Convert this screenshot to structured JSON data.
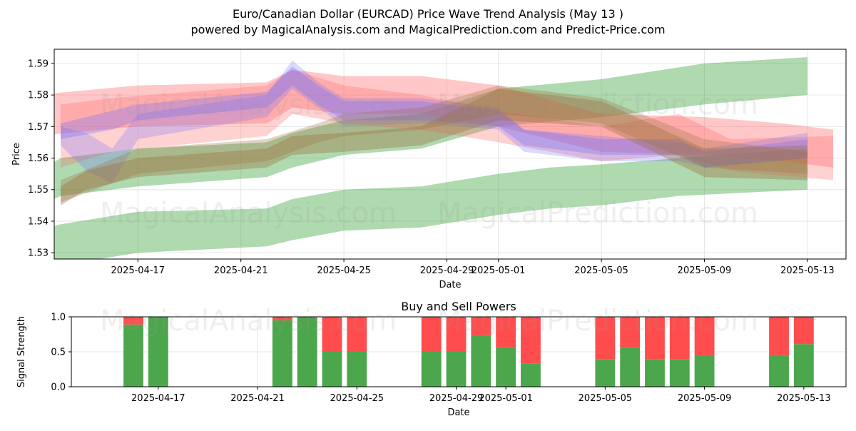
{
  "title": "Euro/Canadian Dollar (EURCAD) Price Wave Trend Analysis (May 13 )",
  "subtitle": "powered by MagicalAnalysis.com and MagicalPrediction.com and Predict-Price.com",
  "watermarks": [
    "MagicalAnalysis.com",
    "MagicalPrediction.com"
  ],
  "chart_data": [
    {
      "type": "area",
      "title": "",
      "xlabel": "Date",
      "ylabel": "Price",
      "x_tick_labels": [
        "2025-04-17",
        "2025-04-21",
        "2025-04-25",
        "2025-04-29",
        "2025-05-01",
        "2025-05-05",
        "2025-05-09",
        "2025-05-13"
      ],
      "xlim": [
        "2025-04-13",
        "2025-05-14"
      ],
      "ylim": [
        1.528,
        1.5945
      ],
      "yticks": [
        1.53,
        1.54,
        1.55,
        1.56,
        1.57,
        1.58,
        1.59
      ],
      "grid": true,
      "colors": {
        "blue": "#6b6bff",
        "red": "#ff6b6b",
        "green": "#2e9a2e",
        "brown": "#9a7040"
      },
      "series": [
        {
          "color": "green",
          "opacity": 0.38,
          "x": [
            "2025-04-13",
            "2025-04-14",
            "2025-04-17",
            "2025-04-22",
            "2025-04-23",
            "2025-04-25",
            "2025-04-28",
            "2025-05-01",
            "2025-05-03",
            "2025-05-05",
            "2025-05-08",
            "2025-05-13"
          ],
          "upper": [
            1.537,
            1.539,
            1.543,
            1.544,
            1.547,
            1.55,
            1.551,
            1.555,
            1.557,
            1.558,
            1.56,
            1.563
          ],
          "lower": [
            1.524,
            1.526,
            1.53,
            1.532,
            1.534,
            1.537,
            1.538,
            1.542,
            1.544,
            1.545,
            1.548,
            1.55
          ]
        },
        {
          "color": "green",
          "opacity": 0.38,
          "x": [
            "2025-04-13",
            "2025-04-14",
            "2025-04-17",
            "2025-04-22",
            "2025-04-23",
            "2025-04-25",
            "2025-04-28",
            "2025-05-01",
            "2025-05-05",
            "2025-05-09",
            "2025-05-13"
          ],
          "upper": [
            1.555,
            1.56,
            1.563,
            1.565,
            1.568,
            1.572,
            1.574,
            1.582,
            1.585,
            1.59,
            1.592
          ],
          "lower": [
            1.544,
            1.548,
            1.551,
            1.554,
            1.557,
            1.561,
            1.563,
            1.57,
            1.573,
            1.577,
            1.58
          ]
        },
        {
          "color": "red",
          "opacity": 0.38,
          "x": [
            "2025-04-13",
            "2025-04-17",
            "2025-04-22",
            "2025-04-23",
            "2025-04-25",
            "2025-04-28",
            "2025-05-01",
            "2025-05-05",
            "2025-05-09",
            "2025-05-12",
            "2025-05-14"
          ],
          "upper": [
            1.58,
            1.583,
            1.584,
            1.588,
            1.586,
            1.586,
            1.583,
            1.574,
            1.573,
            1.571,
            1.569
          ],
          "lower": [
            1.567,
            1.57,
            1.571,
            1.576,
            1.574,
            1.574,
            1.57,
            1.562,
            1.561,
            1.559,
            1.557
          ]
        },
        {
          "color": "red",
          "opacity": 0.3,
          "x": [
            "2025-04-14",
            "2025-04-16",
            "2025-04-22",
            "2025-04-23",
            "2025-04-25",
            "2025-04-28",
            "2025-05-01",
            "2025-05-05",
            "2025-05-08",
            "2025-05-10",
            "2025-05-14"
          ],
          "upper": [
            1.577,
            1.579,
            1.583,
            1.588,
            1.583,
            1.58,
            1.575,
            1.57,
            1.574,
            1.566,
            1.567
          ],
          "lower": [
            1.557,
            1.562,
            1.567,
            1.574,
            1.571,
            1.569,
            1.565,
            1.559,
            1.561,
            1.556,
            1.553
          ]
        },
        {
          "color": "blue",
          "opacity": 0.25,
          "x": [
            "2025-04-14",
            "2025-04-15",
            "2025-04-16",
            "2025-04-17",
            "2025-04-22",
            "2025-04-23",
            "2025-04-24",
            "2025-04-25",
            "2025-04-28",
            "2025-05-01",
            "2025-05-02",
            "2025-05-05",
            "2025-05-08",
            "2025-05-09",
            "2025-05-13"
          ],
          "upper": [
            1.57,
            1.568,
            1.563,
            1.574,
            1.58,
            1.591,
            1.584,
            1.579,
            1.579,
            1.576,
            1.569,
            1.567,
            1.565,
            1.563,
            1.568
          ],
          "lower": [
            1.564,
            1.556,
            1.552,
            1.566,
            1.573,
            1.582,
            1.576,
            1.57,
            1.571,
            1.569,
            1.562,
            1.559,
            1.559,
            1.557,
            1.56
          ]
        },
        {
          "color": "blue",
          "opacity": 0.3,
          "x": [
            "2025-04-14",
            "2025-04-16",
            "2025-04-17",
            "2025-04-22",
            "2025-04-23",
            "2025-04-24",
            "2025-04-25",
            "2025-04-28",
            "2025-05-01",
            "2025-05-02",
            "2025-05-05",
            "2025-05-08",
            "2025-05-09",
            "2025-05-13"
          ],
          "upper": [
            1.571,
            1.575,
            1.577,
            1.581,
            1.589,
            1.583,
            1.578,
            1.578,
            1.575,
            1.569,
            1.566,
            1.566,
            1.562,
            1.566
          ],
          "lower": [
            1.566,
            1.569,
            1.572,
            1.576,
            1.583,
            1.577,
            1.572,
            1.572,
            1.57,
            1.564,
            1.561,
            1.561,
            1.557,
            1.56
          ]
        },
        {
          "color": "brown",
          "opacity": 0.38,
          "x": [
            "2025-04-14",
            "2025-04-15",
            "2025-04-17",
            "2025-04-22",
            "2025-04-23",
            "2025-04-25",
            "2025-04-28",
            "2025-05-01",
            "2025-05-05",
            "2025-05-09",
            "2025-05-13"
          ],
          "upper": [
            1.551,
            1.556,
            1.56,
            1.563,
            1.567,
            1.568,
            1.57,
            1.582,
            1.578,
            1.563,
            1.564
          ],
          "lower": [
            1.545,
            1.55,
            1.554,
            1.557,
            1.561,
            1.562,
            1.564,
            1.572,
            1.57,
            1.554,
            1.553
          ]
        },
        {
          "color": "brown",
          "opacity": 0.3,
          "x": [
            "2025-04-14",
            "2025-04-17",
            "2025-04-22",
            "2025-04-24",
            "2025-04-25",
            "2025-04-28",
            "2025-05-01",
            "2025-05-05",
            "2025-05-09",
            "2025-05-13"
          ],
          "upper": [
            1.553,
            1.563,
            1.566,
            1.571,
            1.574,
            1.576,
            1.583,
            1.579,
            1.566,
            1.562
          ],
          "lower": [
            1.546,
            1.555,
            1.559,
            1.565,
            1.567,
            1.569,
            1.574,
            1.571,
            1.557,
            1.555
          ]
        }
      ]
    },
    {
      "type": "bar",
      "title": "Buy and Sell Powers",
      "xlabel": "Date",
      "ylabel": "Signal Strength",
      "ylim": [
        0,
        1.0
      ],
      "yticks": [
        0.0,
        0.5,
        1.0
      ],
      "x_tick_labels": [
        "2025-04-17",
        "2025-04-21",
        "2025-04-25",
        "2025-04-29",
        "2025-05-01",
        "2025-05-05",
        "2025-05-09",
        "2025-05-13"
      ],
      "colors": {
        "buy": "#4ca64c",
        "sell": "#ff4d4d"
      },
      "categories": [
        "2025-04-16",
        "2025-04-17",
        "2025-04-22",
        "2025-04-23",
        "2025-04-24",
        "2025-04-25",
        "2025-04-28",
        "2025-04-29",
        "2025-04-30",
        "2025-05-01",
        "2025-05-02",
        "2025-05-05",
        "2025-05-06",
        "2025-05-07",
        "2025-05-08",
        "2025-05-09",
        "2025-05-12",
        "2025-05-13"
      ],
      "buy": [
        0.89,
        1.0,
        0.95,
        1.0,
        0.5,
        0.5,
        0.5,
        0.5,
        0.73,
        0.57,
        0.33,
        0.39,
        0.57,
        0.39,
        0.39,
        0.45,
        0.45,
        0.61
      ],
      "sell": [
        0.11,
        0.0,
        0.05,
        0.0,
        0.5,
        0.5,
        0.5,
        0.5,
        0.27,
        0.43,
        0.67,
        0.61,
        0.43,
        0.61,
        0.61,
        0.55,
        0.55,
        0.39
      ]
    }
  ]
}
